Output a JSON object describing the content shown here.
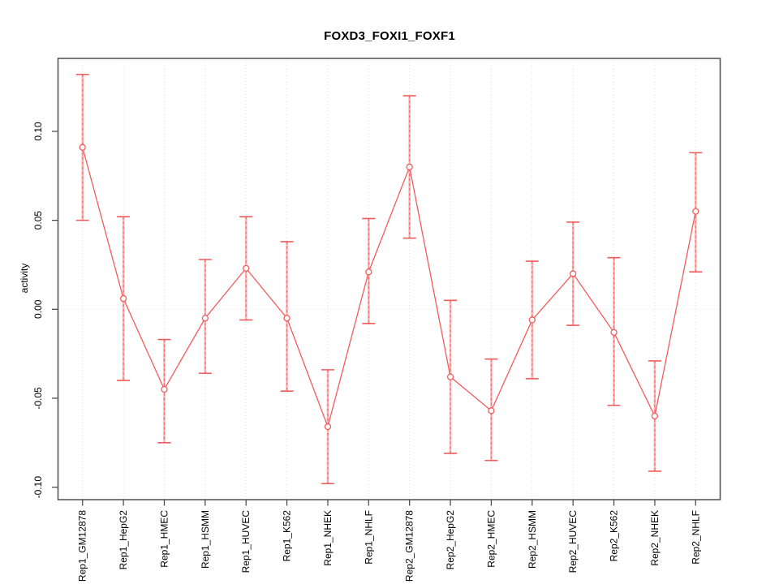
{
  "title": "FOXD3_FOXI1_FOXF1",
  "chart_data": {
    "type": "line",
    "title": "FOXD3_FOXI1_FOXF1",
    "xlabel": "",
    "ylabel": "activity",
    "legend": "none",
    "grid": "dotted vertical line at each category; dotted horizontal line at y=0",
    "marker": "open-circle",
    "categories": [
      "Rep1_GM12878",
      "Rep1_HepG2",
      "Rep1_HMEC",
      "Rep1_HSMM",
      "Rep1_HUVEC",
      "Rep1_K562",
      "Rep1_NHEK",
      "Rep1_NHLF",
      "Rep2_GM12878",
      "Rep2_HepG2",
      "Rep2_HMEC",
      "Rep2_HSMM",
      "Rep2_HUVEC",
      "Rep2_K562",
      "Rep2_NHEK",
      "Rep2_NHLF"
    ],
    "series": [
      {
        "name": "activity",
        "values": [
          0.091,
          0.006,
          -0.045,
          -0.005,
          0.023,
          -0.005,
          -0.066,
          0.021,
          0.08,
          -0.038,
          -0.057,
          -0.006,
          0.02,
          -0.013,
          -0.06,
          0.055
        ],
        "error_low": [
          0.05,
          -0.04,
          -0.075,
          -0.036,
          -0.006,
          -0.046,
          -0.098,
          -0.008,
          0.04,
          -0.081,
          -0.085,
          -0.039,
          -0.009,
          -0.054,
          -0.091,
          0.021
        ],
        "error_high": [
          0.132,
          0.052,
          -0.017,
          0.028,
          0.052,
          0.038,
          -0.034,
          0.051,
          0.12,
          0.005,
          -0.028,
          0.027,
          0.049,
          0.029,
          -0.029,
          0.088
        ]
      }
    ],
    "yticks": [
      -0.1,
      -0.05,
      0.0,
      0.05,
      0.1
    ],
    "ytick_labels": [
      "-0.10",
      "-0.05",
      "0.00",
      "0.05",
      "0.10"
    ],
    "ylim": [
      -0.107,
      0.141
    ],
    "colors": {
      "series": "#f25b5b",
      "error_bar_fill": "#ffb0b0",
      "grid": "#dedede",
      "axis": "#4d4d4d",
      "text": "#000000",
      "background": "#ffffff"
    }
  }
}
